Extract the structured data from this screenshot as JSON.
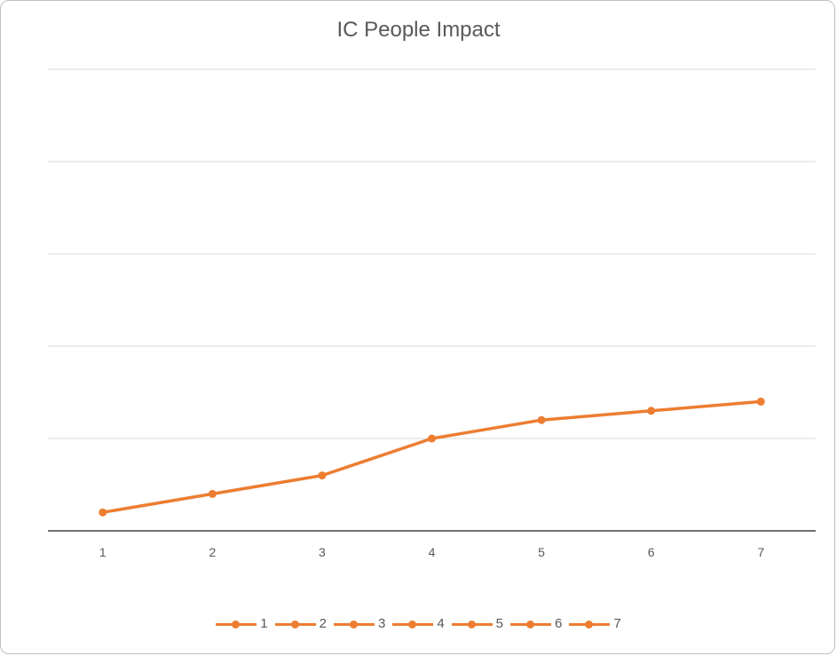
{
  "chart_data": {
    "type": "line",
    "title": "IC People Impact",
    "categories": [
      "1",
      "2",
      "3",
      "4",
      "5",
      "6",
      "7"
    ],
    "series": [
      {
        "values": [
          0.2,
          0.4,
          0.6,
          1.0,
          1.2,
          1.3,
          1.4
        ]
      }
    ],
    "ylim": [
      0,
      5
    ],
    "grid": true,
    "legend": {
      "position": "bottom",
      "entries": [
        "1",
        "2",
        "3",
        "4",
        "5",
        "6",
        "7"
      ]
    },
    "line_color": "#ed7d31"
  }
}
